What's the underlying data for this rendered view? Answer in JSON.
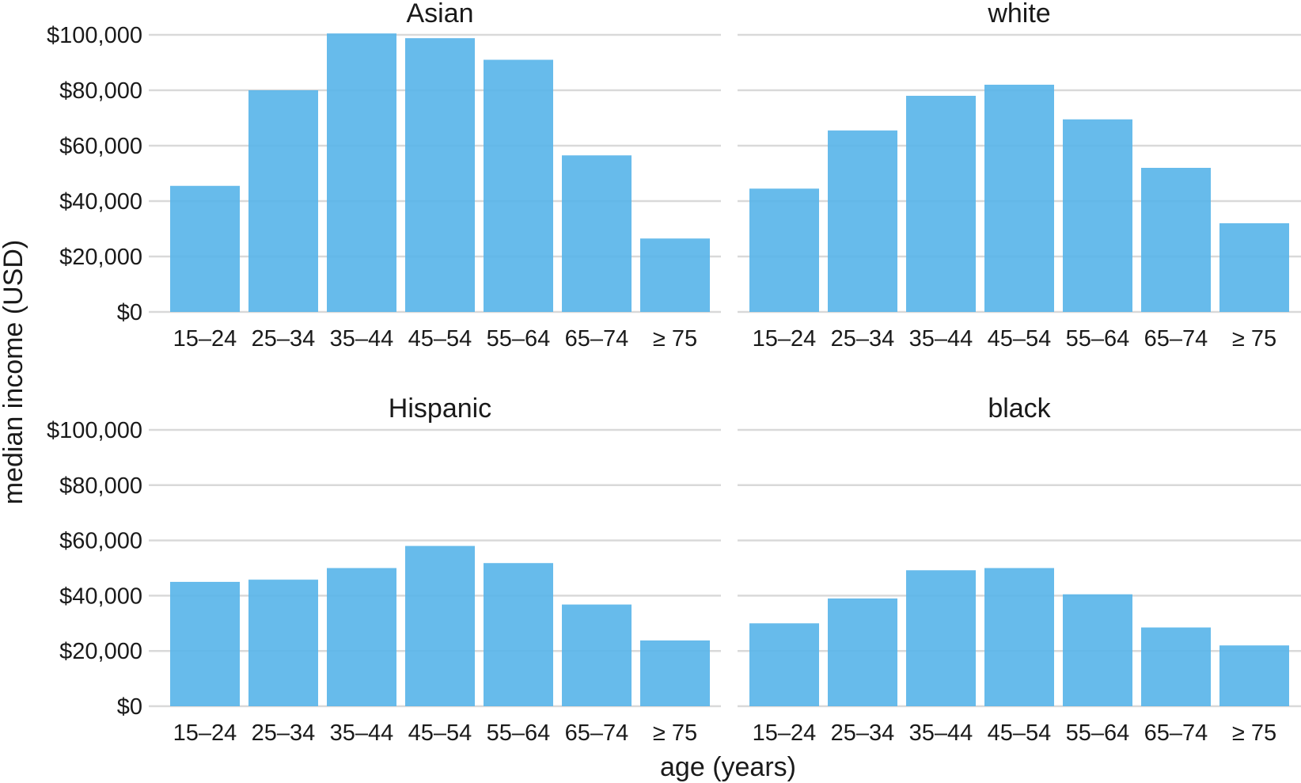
{
  "chart_data": {
    "type": "bar",
    "xlabel": "age (years)",
    "ylabel": "median income (USD)",
    "ylim": [
      0,
      100000
    ],
    "y_ticks": [
      0,
      20000,
      40000,
      60000,
      80000,
      100000
    ],
    "y_tick_labels": [
      "$0",
      "$20,000",
      "$40,000",
      "$60,000",
      "$80,000",
      "$100,000"
    ],
    "categories": [
      "15–24",
      "25–34",
      "35–44",
      "45–54",
      "55–64",
      "65–74",
      "≥ 75"
    ],
    "bar_color": "#56B4E9",
    "grid": "horizontal",
    "panels": [
      {
        "title": "Asian",
        "values": [
          45500,
          80000,
          100500,
          98800,
          91000,
          56500,
          26500
        ]
      },
      {
        "title": "white",
        "values": [
          44500,
          65500,
          78000,
          82000,
          69500,
          52000,
          32000
        ]
      },
      {
        "title": "Hispanic",
        "values": [
          45000,
          45800,
          50000,
          58000,
          51800,
          36800,
          23800
        ]
      },
      {
        "title": "black",
        "values": [
          30000,
          39000,
          49200,
          50000,
          40500,
          28500,
          22000
        ]
      }
    ]
  }
}
